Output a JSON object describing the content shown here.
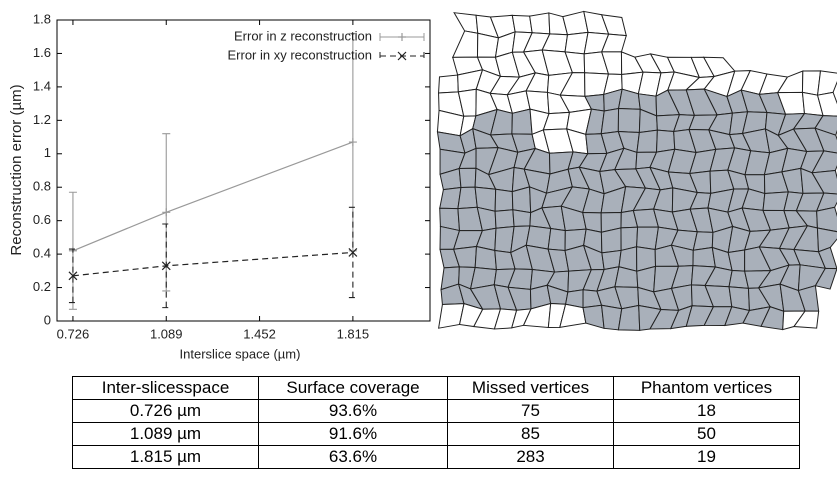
{
  "chart_data": {
    "type": "line",
    "x_label": "Interslice space (µm)",
    "y_label": "Reconstruction error (µm)",
    "x": [
      0.726,
      1.089,
      1.815
    ],
    "series": [
      {
        "name": "Error in z reconstruction",
        "color": "#999999",
        "dash": false,
        "marker": "plus",
        "values": [
          0.42,
          0.65,
          1.07
        ],
        "errors": [
          0.35,
          0.47,
          0.65
        ]
      },
      {
        "name": "Error in xy reconstruction",
        "color": "#222222",
        "dash": true,
        "marker": "cross",
        "values": [
          0.27,
          0.33,
          0.41
        ],
        "errors": [
          0.16,
          0.25,
          0.27
        ]
      }
    ],
    "xlim": [
      0.664,
      2.115
    ],
    "xticks": [
      0.726,
      1.089,
      1.452,
      1.815
    ],
    "ylim": [
      0,
      1.8
    ],
    "yticks": [
      0,
      0.2,
      0.4,
      0.6,
      0.8,
      1,
      1.2,
      1.4,
      1.6,
      1.8
    ],
    "legend": "top-right"
  },
  "table": {
    "header": [
      "Inter-slicesspace",
      "Surface coverage",
      "Missed vertices",
      "Phantom vertices"
    ],
    "rows": [
      [
        "0.726 µm",
        "93.6%",
        "75",
        "18"
      ],
      [
        "1.089 µm",
        "91.6%",
        "85",
        "50"
      ],
      [
        "1.815 µm",
        "63.6%",
        "283",
        "19"
      ]
    ]
  }
}
